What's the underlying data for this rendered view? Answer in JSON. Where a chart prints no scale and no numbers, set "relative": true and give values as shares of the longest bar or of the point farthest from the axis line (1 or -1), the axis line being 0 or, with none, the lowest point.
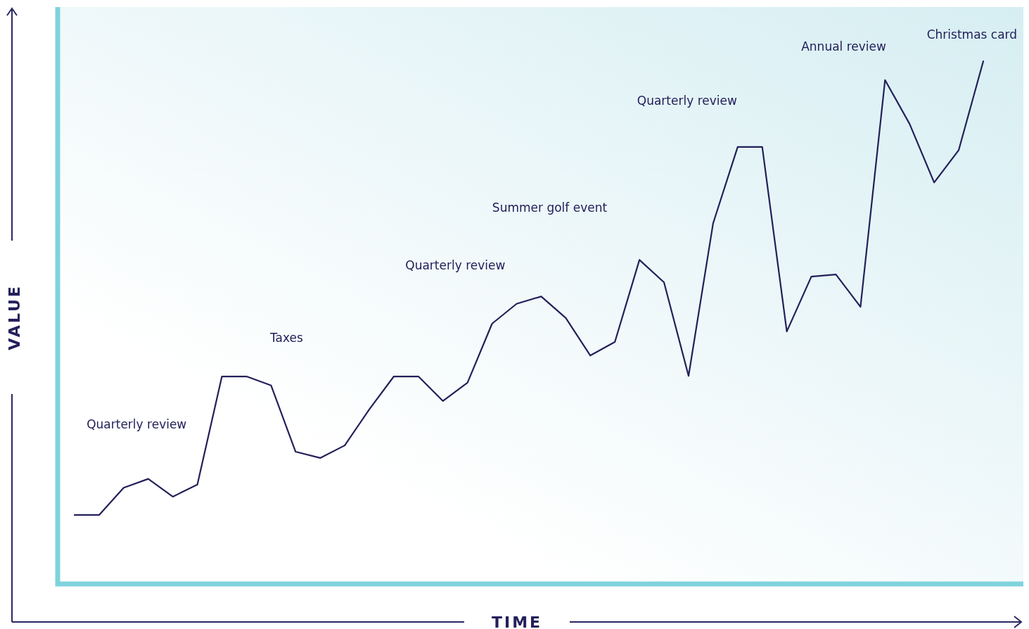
{
  "chart_data": {
    "type": "line",
    "relative": true,
    "xlabel": "TIME",
    "ylabel": "VALUE",
    "categories": [
      null,
      null,
      null,
      null,
      null,
      null,
      null,
      null,
      null,
      null,
      null,
      null,
      null,
      null,
      null,
      null,
      null,
      null,
      null,
      null,
      null,
      null,
      null,
      null,
      null,
      null,
      null,
      null,
      null,
      null,
      null,
      null,
      null,
      null,
      null,
      null,
      null,
      null
    ],
    "series": [
      {
        "color": "#23205a",
        "values": [
          0.132,
          0.132,
          0.184,
          0.201,
          0.167,
          0.19,
          0.397,
          0.397,
          0.38,
          0.253,
          0.241,
          0.265,
          0.334,
          0.397,
          0.397,
          0.35,
          0.385,
          0.498,
          0.536,
          0.55,
          0.509,
          0.437,
          0.463,
          0.62,
          0.577,
          0.398,
          0.69,
          0.836,
          0.836,
          0.483,
          0.588,
          0.592,
          0.53,
          0.964,
          0.88,
          0.768,
          0.83,
          1
        ]
      }
    ],
    "annotations": [
      "Quarterly review",
      "Taxes",
      "Quarterly review",
      "Summer golf event",
      "Quarterly review",
      "Annual review",
      "Christmas card"
    ],
    "marker": "none",
    "line_style": "solid"
  }
}
